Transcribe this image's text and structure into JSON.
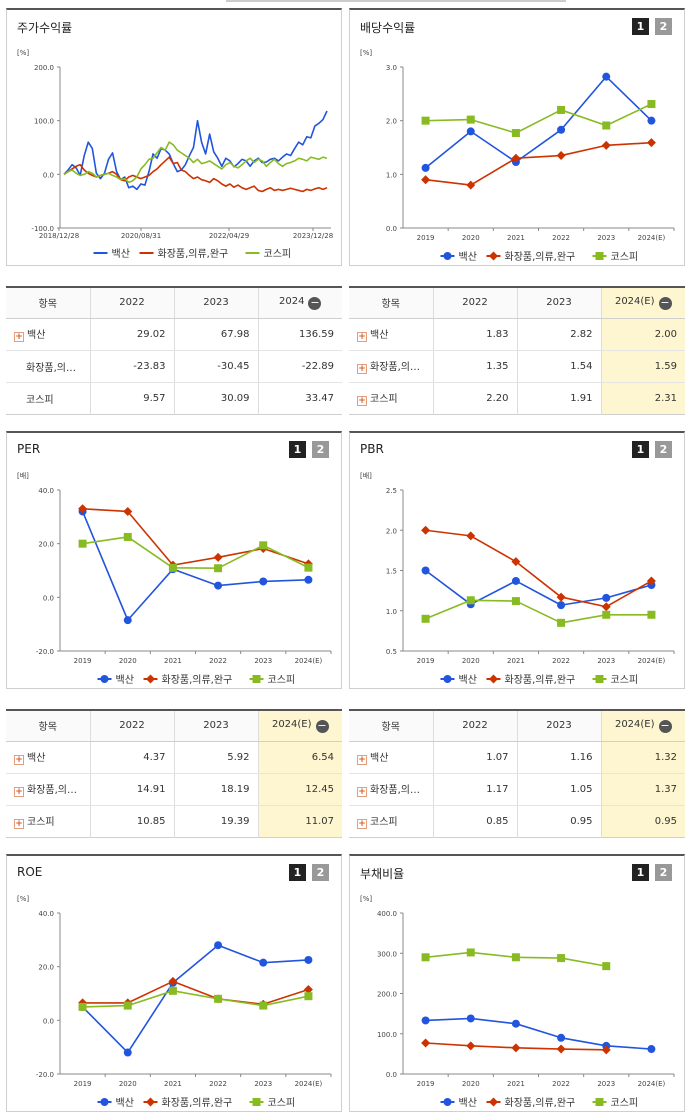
{
  "colors": {
    "baeksan": "#2255dd",
    "cosmetics": "#cc3300",
    "kospi": "#88bb22"
  },
  "pager": [
    "1",
    "2"
  ],
  "legend": [
    "백산",
    "화장품,의류,완구",
    "코스피"
  ],
  "panels": {
    "stock": {
      "title": "주가수익률"
    },
    "dividend": {
      "title": "배당수익률"
    },
    "per": {
      "title": "PER"
    },
    "pbr": {
      "title": "PBR"
    },
    "roe": {
      "title": "ROE"
    },
    "debt": {
      "title": "부채비율"
    }
  },
  "tables": {
    "stock": {
      "headers": [
        "항목",
        "2022",
        "2023",
        "2024"
      ],
      "rows": [
        {
          "name": "백산",
          "plus": true,
          "values": [
            "29.02",
            "67.98",
            "136.59"
          ]
        },
        {
          "name": "화장품,의…",
          "plus": false,
          "values": [
            "-23.83",
            "-30.45",
            "-22.89"
          ]
        },
        {
          "name": "코스피",
          "plus": false,
          "values": [
            "9.57",
            "30.09",
            "33.47"
          ]
        }
      ]
    },
    "dividend": {
      "headers": [
        "항목",
        "2022",
        "2023",
        "2024(E)"
      ],
      "rows": [
        {
          "name": "백산",
          "plus": true,
          "values": [
            "1.83",
            "2.82",
            "2.00"
          ]
        },
        {
          "name": "화장품,의…",
          "plus": true,
          "values": [
            "1.35",
            "1.54",
            "1.59"
          ]
        },
        {
          "name": "코스피",
          "plus": true,
          "values": [
            "2.20",
            "1.91",
            "2.31"
          ]
        }
      ]
    },
    "per": {
      "headers": [
        "항목",
        "2022",
        "2023",
        "2024(E)"
      ],
      "rows": [
        {
          "name": "백산",
          "plus": true,
          "values": [
            "4.37",
            "5.92",
            "6.54"
          ]
        },
        {
          "name": "화장품,의…",
          "plus": true,
          "values": [
            "14.91",
            "18.19",
            "12.45"
          ]
        },
        {
          "name": "코스피",
          "plus": true,
          "values": [
            "10.85",
            "19.39",
            "11.07"
          ]
        }
      ]
    },
    "pbr": {
      "headers": [
        "항목",
        "2022",
        "2023",
        "2024(E)"
      ],
      "rows": [
        {
          "name": "백산",
          "plus": true,
          "values": [
            "1.07",
            "1.16",
            "1.32"
          ]
        },
        {
          "name": "화장품,의…",
          "plus": true,
          "values": [
            "1.17",
            "1.05",
            "1.37"
          ]
        },
        {
          "name": "코스피",
          "plus": true,
          "values": [
            "0.85",
            "0.95",
            "0.95"
          ]
        }
      ]
    }
  },
  "chart_data": [
    {
      "id": "stock",
      "type": "line",
      "unit": "[%]",
      "yticks": [
        -100,
        0,
        100,
        200
      ],
      "ytick_labels": [
        "-100.0",
        "0.0",
        "100.0",
        "200.0"
      ],
      "xlabels": [
        "2018/12/28",
        "2020/08/31",
        "2022/04/29",
        "2023/12/28"
      ],
      "n": 66,
      "series": [
        {
          "name": "백산",
          "values": [
            0,
            8,
            18,
            12,
            -2,
            35,
            60,
            48,
            2,
            -8,
            2,
            28,
            40,
            5,
            -10,
            -5,
            -25,
            -22,
            -28,
            -18,
            -20,
            5,
            38,
            30,
            48,
            45,
            38,
            20,
            5,
            8,
            18,
            35,
            50,
            100,
            60,
            38,
            75,
            42,
            30,
            15,
            30,
            25,
            14,
            20,
            28,
            25,
            15,
            25,
            30,
            22,
            23,
            28,
            30,
            25,
            32,
            38,
            35,
            48,
            60,
            55,
            70,
            68,
            90,
            95,
            102,
            118
          ]
        },
        {
          "name": "화장품,의류,완구",
          "values": [
            0,
            5,
            10,
            15,
            18,
            8,
            2,
            -2,
            -5,
            -2,
            0,
            2,
            5,
            0,
            -10,
            -12,
            -5,
            -2,
            -5,
            -8,
            -5,
            -2,
            5,
            10,
            18,
            25,
            32,
            20,
            22,
            8,
            5,
            -2,
            -8,
            -5,
            -10,
            -12,
            -15,
            -8,
            -12,
            -18,
            -22,
            -18,
            -24,
            -20,
            -25,
            -28,
            -25,
            -22,
            -30,
            -32,
            -28,
            -25,
            -30,
            -28,
            -30,
            -28,
            -26,
            -28,
            -30,
            -32,
            -28,
            -30,
            -27,
            -25,
            -28,
            -25
          ]
        },
        {
          "name": "코스피",
          "values": [
            0,
            5,
            8,
            2,
            -2,
            0,
            5,
            2,
            -5,
            -2,
            0,
            2,
            -2,
            -5,
            -10,
            -8,
            -15,
            -12,
            -5,
            10,
            18,
            28,
            30,
            40,
            50,
            45,
            60,
            55,
            45,
            40,
            35,
            30,
            22,
            28,
            20,
            22,
            25,
            20,
            15,
            10,
            18,
            22,
            15,
            12,
            18,
            25,
            30,
            22,
            28,
            25,
            15,
            22,
            28,
            20,
            15,
            20,
            22,
            25,
            30,
            28,
            25,
            32,
            30,
            28,
            32,
            30
          ]
        }
      ]
    },
    {
      "id": "dividend",
      "type": "line",
      "unit": "[%]",
      "yticks": [
        0,
        1,
        2,
        3
      ],
      "ytick_labels": [
        "0.0",
        "1.0",
        "2.0",
        "3.0"
      ],
      "xlabels": [
        "2019",
        "2020",
        "2021",
        "2022",
        "2023",
        "2024(E)"
      ],
      "series": [
        {
          "name": "백산",
          "values": [
            1.12,
            1.8,
            1.23,
            1.83,
            2.82,
            2.0
          ]
        },
        {
          "name": "화장품,의류,완구",
          "values": [
            0.9,
            0.8,
            1.3,
            1.35,
            1.54,
            1.59
          ]
        },
        {
          "name": "코스피",
          "values": [
            2.0,
            2.02,
            1.77,
            2.2,
            1.91,
            2.31
          ]
        }
      ]
    },
    {
      "id": "per",
      "type": "line",
      "unit": "[배]",
      "yticks": [
        -20,
        0,
        20,
        40
      ],
      "ytick_labels": [
        "-20.0",
        "0.0",
        "20.0",
        "40.0"
      ],
      "xlabels": [
        "2019",
        "2020",
        "2021",
        "2022",
        "2023",
        "2024(E)"
      ],
      "series": [
        {
          "name": "백산",
          "values": [
            32.0,
            -8.5,
            10.5,
            4.37,
            5.92,
            6.54
          ]
        },
        {
          "name": "화장품,의류,완구",
          "values": [
            33.0,
            32.0,
            12.0,
            14.91,
            18.19,
            12.45
          ]
        },
        {
          "name": "코스피",
          "values": [
            20.0,
            22.5,
            11.0,
            10.85,
            19.39,
            11.07
          ]
        }
      ]
    },
    {
      "id": "pbr",
      "type": "line",
      "unit": "[배]",
      "yticks": [
        0.5,
        1.0,
        1.5,
        2.0,
        2.5
      ],
      "ytick_labels": [
        "0.5",
        "1.0",
        "1.5",
        "2.0",
        "2.5"
      ],
      "xlabels": [
        "2019",
        "2020",
        "2021",
        "2022",
        "2023",
        "2024(E)"
      ],
      "series": [
        {
          "name": "백산",
          "values": [
            1.5,
            1.08,
            1.37,
            1.07,
            1.16,
            1.32
          ]
        },
        {
          "name": "화장품,의류,완구",
          "values": [
            2.0,
            1.93,
            1.61,
            1.17,
            1.05,
            1.37
          ]
        },
        {
          "name": "코스피",
          "values": [
            0.9,
            1.13,
            1.12,
            0.85,
            0.95,
            0.95
          ]
        }
      ]
    },
    {
      "id": "roe",
      "type": "line",
      "unit": "[%]",
      "yticks": [
        -20,
        0,
        20,
        40
      ],
      "ytick_labels": [
        "-20.0",
        "0.0",
        "20.0",
        "40.0"
      ],
      "xlabels": [
        "2019",
        "2020",
        "2021",
        "2022",
        "2023",
        "2024(E)"
      ],
      "series": [
        {
          "name": "백산",
          "values": [
            5.0,
            -12.0,
            14.0,
            28.0,
            21.5,
            22.5
          ]
        },
        {
          "name": "화장품,의류,완구",
          "values": [
            6.5,
            6.5,
            14.5,
            8.0,
            6.0,
            11.5
          ]
        },
        {
          "name": "코스피",
          "values": [
            5.0,
            5.5,
            11.0,
            8.0,
            5.5,
            9.0
          ]
        }
      ]
    },
    {
      "id": "debt",
      "type": "line",
      "unit": "[%]",
      "yticks": [
        0,
        100,
        200,
        300,
        400
      ],
      "ytick_labels": [
        "0.0",
        "100.0",
        "200.0",
        "300.0",
        "400.0"
      ],
      "xlabels": [
        "2019",
        "2020",
        "2021",
        "2022",
        "2023",
        "2024(E)"
      ],
      "series": [
        {
          "name": "백산",
          "values": [
            133,
            138,
            125,
            90,
            70,
            62
          ]
        },
        {
          "name": "화장품,의류,완구",
          "values": [
            77,
            70,
            65,
            62,
            60,
            null
          ]
        },
        {
          "name": "코스피",
          "values": [
            290,
            302,
            290,
            288,
            268,
            null
          ]
        }
      ]
    }
  ]
}
